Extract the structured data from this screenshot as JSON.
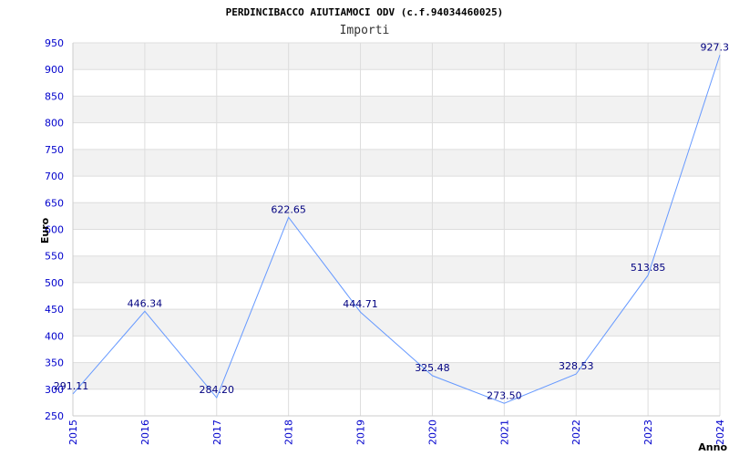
{
  "chart_data": {
    "type": "line",
    "title": "PERDINCIBACCO AIUTIAMOCI ODV (c.f.94034460025)",
    "subtitle": "Importi",
    "xlabel": "Anno",
    "ylabel": "Euro",
    "ylim": [
      250,
      950
    ],
    "yticks": [
      250,
      300,
      350,
      400,
      450,
      500,
      550,
      600,
      650,
      700,
      750,
      800,
      850,
      900,
      950
    ],
    "grid": true,
    "line_color": "#6699ff",
    "band_color": "#f2f2f2",
    "categories": [
      "2015",
      "2016",
      "2017",
      "2018",
      "2019",
      "2020",
      "2021",
      "2022",
      "2023",
      "2024"
    ],
    "values": [
      291.11,
      446.34,
      284.2,
      622.65,
      444.71,
      325.48,
      273.5,
      328.53,
      513.85,
      927.3
    ],
    "labels": [
      "291.11",
      "446.34",
      "284.20",
      "622.65",
      "444.71",
      "325.48",
      "273.50",
      "328.53",
      "513.85",
      "927.3"
    ]
  }
}
